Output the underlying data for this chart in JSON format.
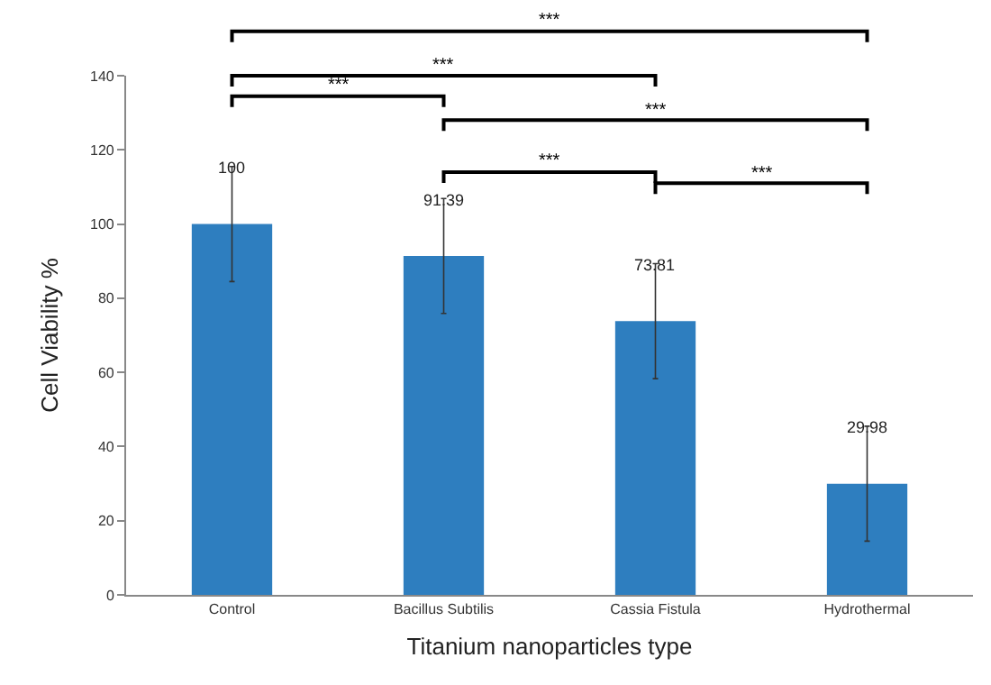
{
  "chart_data": {
    "type": "bar",
    "categories": [
      "Control",
      "Bacillus Subtilis",
      "Cassia Fistula",
      "Hydrothermal"
    ],
    "values": [
      100,
      91.39,
      73.81,
      29.98
    ],
    "color": "#2e7ebf",
    "errors": [
      15.5,
      15.5,
      15.5,
      15.5
    ],
    "data_labels": true,
    "xlabel": "Titanium nanoparticles type",
    "ylabel": "Cell Viability %",
    "ylim": [
      0,
      140
    ],
    "yticks": [
      0,
      20,
      40,
      60,
      80,
      100,
      120,
      140
    ],
    "grid": false,
    "legend": false,
    "annotations": [
      "***",
      "***",
      "***",
      "***",
      "***",
      "***"
    ]
  }
}
